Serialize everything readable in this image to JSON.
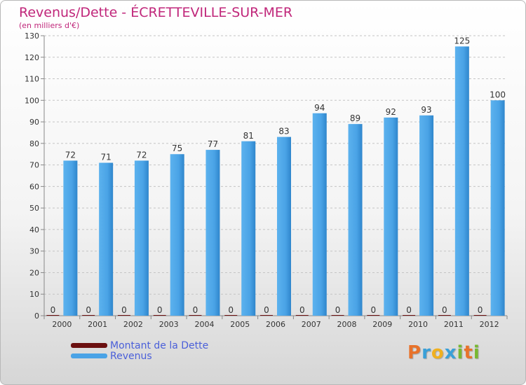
{
  "header": {
    "title": "Revenus/Dette - ÉCRETTEVILLE-SUR-MER",
    "subtitle": "(en milliers d'€)"
  },
  "legend": [
    {
      "label": "Montant de la Dette",
      "color": "#6b0f0f"
    },
    {
      "label": "Revenus",
      "color": "#4aa3e6"
    }
  ],
  "brand": {
    "letters": [
      "P",
      "r",
      "o",
      "x",
      "i",
      "t",
      "i"
    ],
    "colors": [
      "#e8722a",
      "#3aa0d8",
      "#f0b020",
      "#3aa0d8",
      "#78b832",
      "#e8722a",
      "#78b832"
    ]
  },
  "chart_data": {
    "type": "bar",
    "title": "Revenus/Dette - ÉCRETTEVILLE-SUR-MER",
    "ylabel": "(en milliers d'€)",
    "categories": [
      "2000",
      "2001",
      "2002",
      "2003",
      "2004",
      "2005",
      "2006",
      "2007",
      "2008",
      "2009",
      "2010",
      "2011",
      "2012"
    ],
    "series": [
      {
        "name": "Montant de la Dette",
        "color": "#6b0f0f",
        "values": [
          0,
          0,
          0,
          0,
          0,
          0,
          0,
          0,
          0,
          0,
          0,
          0,
          0
        ]
      },
      {
        "name": "Revenus",
        "color": "#4aa3e6",
        "values": [
          72,
          71,
          72,
          75,
          77,
          81,
          83,
          94,
          89,
          92,
          93,
          125,
          100
        ]
      }
    ],
    "ylim": [
      0,
      130
    ],
    "yticks": [
      0,
      10,
      20,
      30,
      40,
      50,
      60,
      70,
      80,
      90,
      100,
      110,
      120,
      130
    ],
    "grid": true,
    "legend_position": "bottom-left"
  }
}
